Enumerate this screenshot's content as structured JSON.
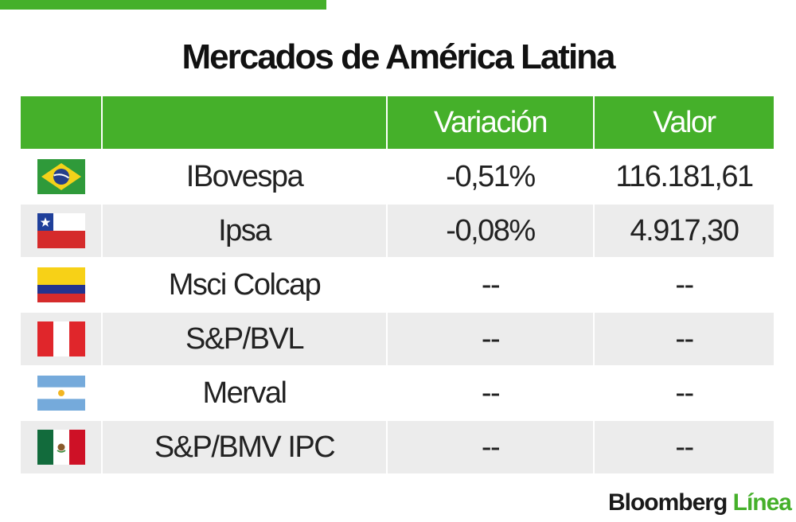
{
  "title": "Mercados de América Latina",
  "header": {
    "flag": "",
    "name": "",
    "variation": "Variación",
    "value": "Valor"
  },
  "rows": [
    {
      "flag": "brazil-flag-icon",
      "name": "IBovespa",
      "variation": "-0,51%",
      "value": "116.181,61"
    },
    {
      "flag": "chile-flag-icon",
      "name": "Ipsa",
      "variation": "-0,08%",
      "value": "4.917,30"
    },
    {
      "flag": "colombia-flag-icon",
      "name": "Msci Colcap",
      "variation": "--",
      "value": "--"
    },
    {
      "flag": "peru-flag-icon",
      "name": "S&P/BVL",
      "variation": "--",
      "value": "--"
    },
    {
      "flag": "argentina-flag-icon",
      "name": "Merval",
      "variation": "--",
      "value": "--"
    },
    {
      "flag": "mexico-flag-icon",
      "name": "S&P/BMV IPC",
      "variation": "--",
      "value": "--"
    }
  ],
  "brand": {
    "part1": "Bloomberg",
    "part2": "Línea"
  },
  "colors": {
    "accent": "#45b02a",
    "row_alt": "#ececec",
    "text": "#222222"
  }
}
